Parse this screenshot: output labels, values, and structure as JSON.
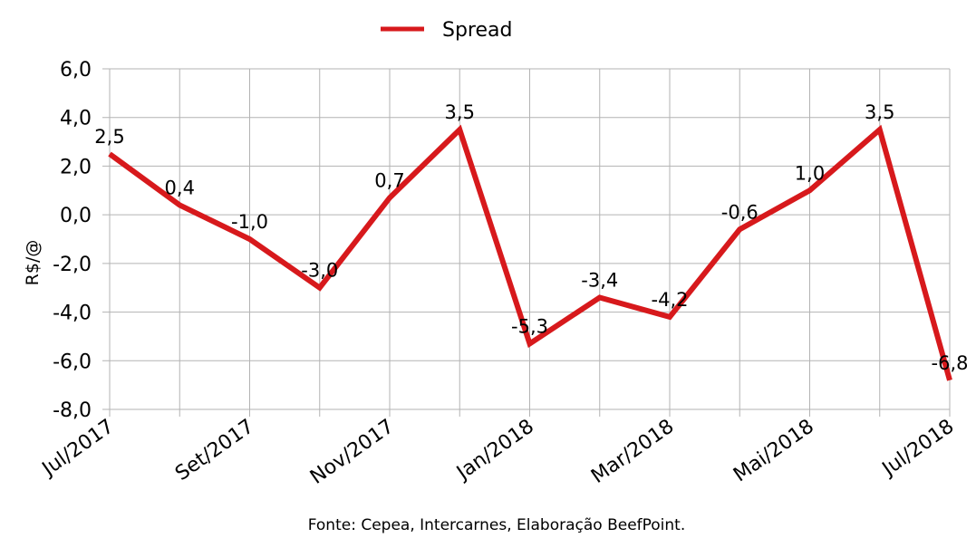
{
  "chart_data": {
    "type": "line",
    "title": "",
    "ylabel": "R$/@",
    "xlabel": "",
    "ylim": [
      -8.0,
      6.0
    ],
    "y_ticks": [
      "6,0",
      "4,0",
      "2,0",
      "0,0",
      "-2,0",
      "-4,0",
      "-6,0",
      "-8,0"
    ],
    "y_tick_values": [
      6,
      4,
      2,
      0,
      -2,
      -4,
      -6,
      -8
    ],
    "x_tick_labels": [
      "Jul/2017",
      "Set/2017",
      "Nov/2017",
      "Jan/2018",
      "Mar/2018",
      "Mai/2018",
      "Jul/2018"
    ],
    "x_tick_label_indices": [
      0,
      2,
      4,
      6,
      8,
      10,
      12
    ],
    "grid": true,
    "legend_position": "top-center",
    "series": [
      {
        "name": "Spread",
        "color": "#d7191c",
        "values": [
          2.5,
          0.4,
          -1.0,
          -3.0,
          0.7,
          3.5,
          -5.3,
          -3.4,
          -4.2,
          -0.6,
          1.0,
          3.5,
          -6.8
        ],
        "data_labels": [
          "2,5",
          "0,4",
          "-1,0",
          "-3,0",
          "0,7",
          "3,5",
          "-5,3",
          "-3,4",
          "-4,2",
          "-0,6",
          "1,0",
          "3,5",
          "-6,8"
        ]
      }
    ],
    "source": "Fonte: Cepea, Intercarnes, Elaboração BeefPoint."
  }
}
